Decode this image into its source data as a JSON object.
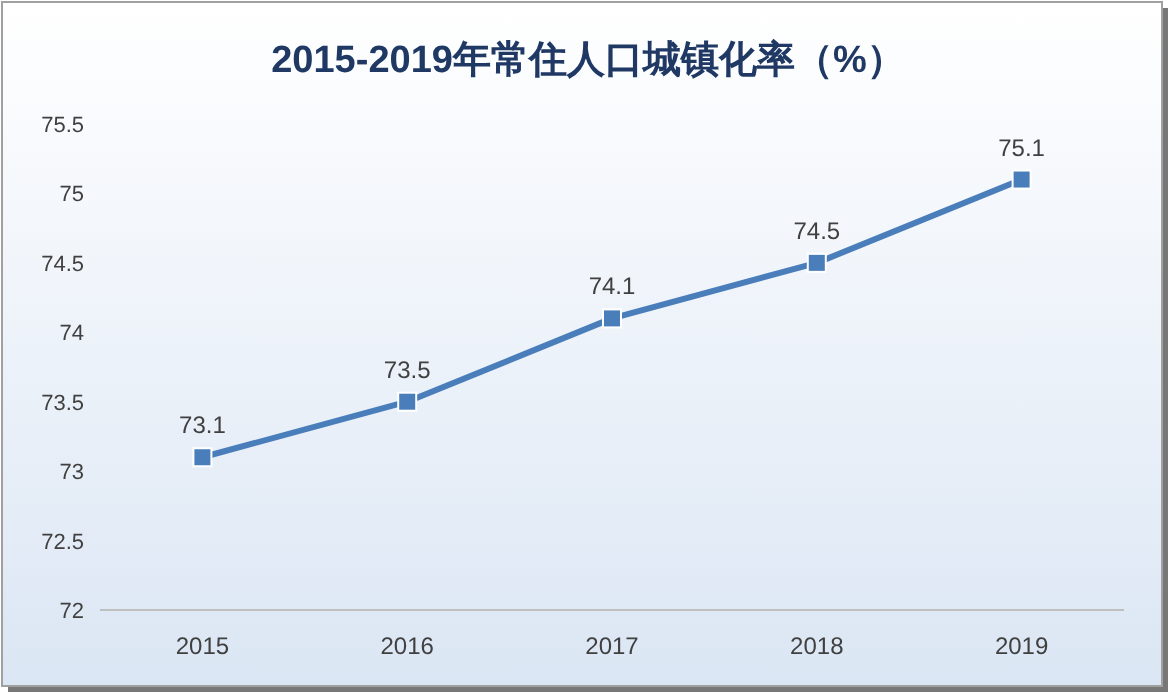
{
  "chart_data": {
    "type": "line",
    "title": "2015-2019年常住人口城镇化率（%）",
    "categories": [
      "2015",
      "2016",
      "2017",
      "2018",
      "2019"
    ],
    "series": [
      {
        "color": "#4a7ebb",
        "values": [
          73.1,
          73.5,
          74.1,
          74.5,
          75.1
        ]
      }
    ],
    "ylim": [
      72,
      75.5
    ],
    "yticks": [
      72,
      72.5,
      73,
      73.5,
      74,
      74.5,
      75,
      75.5
    ],
    "data_labels": true,
    "marker": "square"
  }
}
